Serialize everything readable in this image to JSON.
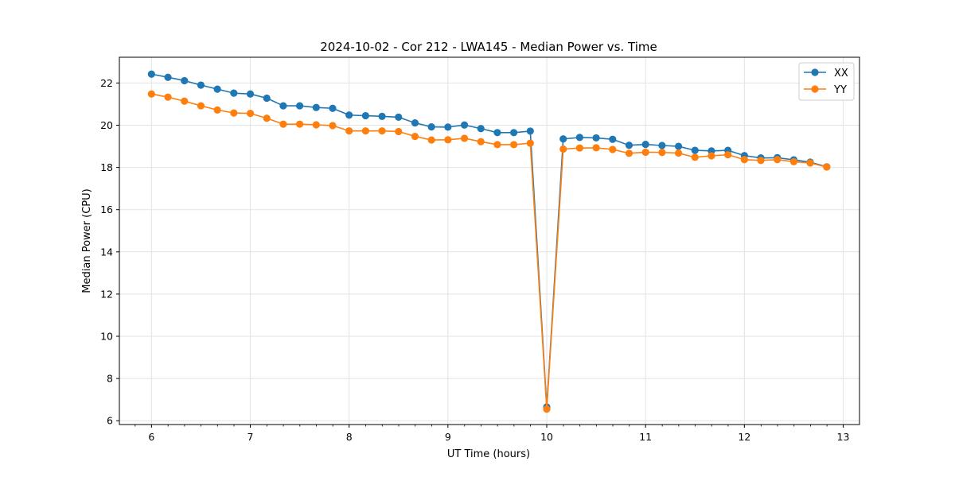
{
  "chart_data": {
    "type": "line",
    "title": "2024-10-02 - Cor 212 - LWA145 - Median Power vs. Time",
    "xlabel": "UT Time (hours)",
    "ylabel": "Median Power (CPU)",
    "xlim": [
      5.675,
      13.165
    ],
    "ylim": [
      5.82,
      23.22
    ],
    "grid": true,
    "x_ticks": [
      6,
      7,
      8,
      9,
      10,
      11,
      12,
      13
    ],
    "x_tick_labels": [
      "6",
      "7",
      "8",
      "9",
      "10",
      "11",
      "12",
      "13"
    ],
    "x_minor_tick_step": 0.1667,
    "y_ticks": [
      6,
      8,
      10,
      12,
      14,
      16,
      18,
      20,
      22
    ],
    "y_tick_labels": [
      "6",
      "8",
      "10",
      "12",
      "14",
      "16",
      "18",
      "20",
      "22"
    ],
    "legend_position": "top-right",
    "x": [
      6.0,
      6.1667,
      6.3333,
      6.5,
      6.6667,
      6.8333,
      7.0,
      7.1667,
      7.3333,
      7.5,
      7.6667,
      7.8333,
      8.0,
      8.1667,
      8.3333,
      8.5,
      8.6667,
      8.8333,
      9.0,
      9.1667,
      9.3333,
      9.5,
      9.6667,
      9.8333,
      10.0,
      10.1667,
      10.3333,
      10.5,
      10.6667,
      10.8333,
      11.0,
      11.1667,
      11.3333,
      11.5,
      11.6667,
      11.8333,
      12.0,
      12.1667,
      12.3333,
      12.5,
      12.6667,
      12.8333
    ],
    "series": [
      {
        "name": "XX",
        "color": "#1f77b4",
        "values": [
          22.42,
          22.27,
          22.11,
          21.9,
          21.71,
          21.52,
          21.48,
          21.28,
          20.92,
          20.92,
          20.84,
          20.8,
          20.48,
          20.45,
          20.42,
          20.38,
          20.11,
          19.92,
          19.91,
          20.01,
          19.84,
          19.65,
          19.65,
          19.72,
          6.65,
          19.35,
          19.42,
          19.4,
          19.33,
          19.05,
          19.09,
          19.04,
          19.0,
          18.81,
          18.78,
          18.81,
          18.56,
          18.45,
          18.46,
          18.36,
          18.25,
          18.03
        ]
      },
      {
        "name": "YY",
        "color": "#ff7f0e",
        "values": [
          21.48,
          21.33,
          21.14,
          20.92,
          20.72,
          20.58,
          20.56,
          20.33,
          20.05,
          20.05,
          20.02,
          19.98,
          19.73,
          19.73,
          19.73,
          19.7,
          19.47,
          19.3,
          19.31,
          19.38,
          19.22,
          19.08,
          19.08,
          19.15,
          6.55,
          18.87,
          18.92,
          18.93,
          18.85,
          18.67,
          18.72,
          18.71,
          18.68,
          18.48,
          18.55,
          18.6,
          18.37,
          18.33,
          18.37,
          18.27,
          18.21,
          18.02
        ]
      }
    ]
  }
}
